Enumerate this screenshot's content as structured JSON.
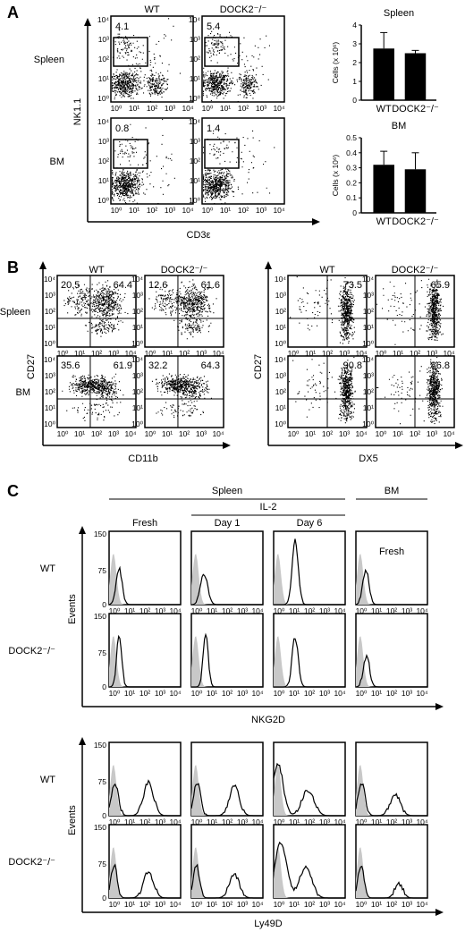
{
  "panel_letters": [
    "A",
    "B",
    "C"
  ],
  "panel_a": {
    "columns": [
      "WT",
      "DOCK2⁻/⁻"
    ],
    "rows": [
      "Spleen",
      "BM"
    ],
    "y_axis_label": "NK1.1",
    "x_axis_label": "CD3ε",
    "gate_values": [
      [
        "4.1",
        "5.4"
      ],
      [
        "0.8",
        "1.4"
      ]
    ],
    "y_ticks": [
      "10⁴",
      "10³",
      "10²",
      "10¹",
      "10⁰"
    ],
    "x_ticks": [
      "10⁰",
      "10¹",
      "10²",
      "10³",
      "10⁴"
    ]
  },
  "chart_data": [
    {
      "type": "bar",
      "title": "Spleen",
      "categories": [
        "WT",
        "DOCK2⁻/⁻"
      ],
      "values": [
        2.75,
        2.5
      ],
      "errors": [
        0.85,
        0.15
      ],
      "ylabel": "Cells (x 10⁶)",
      "ylim": [
        0,
        4
      ],
      "yticks": [
        0,
        1,
        2,
        3,
        4
      ]
    },
    {
      "type": "bar",
      "title": "BM",
      "categories": [
        "WT",
        "DOCK2⁻/⁻"
      ],
      "values": [
        0.32,
        0.29
      ],
      "errors": [
        0.09,
        0.11
      ],
      "ylabel": "Cells (x 10⁶)",
      "ylim": [
        0,
        0.5
      ],
      "yticks": [
        0,
        0.1,
        0.2,
        0.3,
        0.4,
        0.5
      ]
    }
  ],
  "panel_b": {
    "left": {
      "columns": [
        "WT",
        "DOCK2⁻/⁻"
      ],
      "rows": [
        "Spleen",
        "BM"
      ],
      "y_axis_label": "CD27",
      "x_axis_label": "CD11b",
      "quadrant_values": [
        [
          [
            "20.5",
            "64.4"
          ],
          [
            "12.6",
            "61.6"
          ]
        ],
        [
          [
            "35.6",
            "61.9"
          ],
          [
            "32.2",
            "64.3"
          ]
        ]
      ]
    },
    "right": {
      "columns": [
        "WT",
        "DOCK2⁻/⁻"
      ],
      "y_axis_label": "CD27",
      "x_axis_label": "DX5",
      "quadrant_values": [
        [
          "73.5",
          "65.9"
        ],
        [
          "90.8",
          "86.8"
        ]
      ]
    },
    "y_ticks": [
      "10⁴",
      "10³",
      "10²",
      "10¹",
      "10⁰"
    ],
    "x_ticks": [
      "10⁰",
      "10¹",
      "10²",
      "10³",
      "10⁴"
    ]
  },
  "panel_c": {
    "header_spleen": "Spleen",
    "header_il2": "IL-2",
    "header_bm": "BM",
    "columns": [
      "Fresh",
      "Day 1",
      "Day 6"
    ],
    "bm_inner_label": "Fresh",
    "rows": [
      "WT",
      "DOCK2⁻/⁻"
    ],
    "y_axis_label": "Events",
    "y_ticks": [
      "150",
      "75",
      "0"
    ],
    "x_ticks": [
      "10⁰",
      "10¹",
      "10²",
      "10³",
      "10⁴"
    ],
    "marker_top": "NKG2D",
    "marker_bottom": "Ly49D"
  }
}
